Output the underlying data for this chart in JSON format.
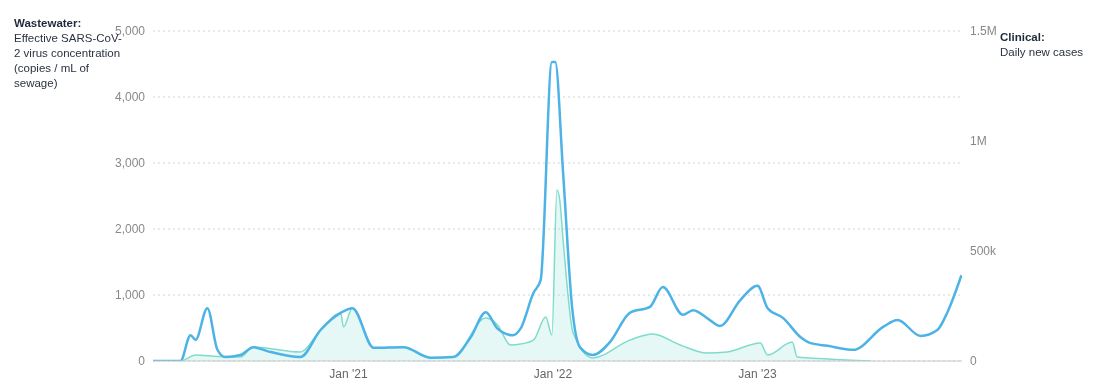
{
  "chart_data": {
    "type": "line",
    "ylabel": "Wastewater: Effective SARS-CoV-2 virus concentration (copies / mL of sewage)",
    "y2label": "Clinical: Daily new cases",
    "series": [
      {
        "color": "#4db3e6",
        "x": [
          "2020-01-18",
          "2020-03-07",
          "2020-03-25",
          "2020-04-03",
          "2020-04-24",
          "2020-05-12",
          "2020-05-26",
          "2020-06-22",
          "2020-07-15",
          "2020-08-09",
          "2020-10-07",
          "2020-11-12",
          "2020-12-18",
          "2021-01-08",
          "2021-02-15",
          "2021-04-09",
          "2021-05-27",
          "2021-07-07",
          "2021-08-07",
          "2021-09-03",
          "2021-09-24",
          "2021-10-21",
          "2021-11-04",
          "2021-11-27",
          "2021-12-10",
          "2021-12-30",
          "2022-01-05",
          "2022-01-19",
          "2022-02-04",
          "2022-02-18",
          "2022-03-13",
          "2022-04-13",
          "2022-05-18",
          "2022-06-23",
          "2022-07-16",
          "2022-08-21",
          "2022-09-08",
          "2022-10-08",
          "2022-10-26",
          "2022-12-01",
          "2023-01-01",
          "2023-01-19",
          "2023-02-16",
          "2023-03-19",
          "2023-04-06",
          "2023-05-06",
          "2023-06-21",
          "2023-08-14",
          "2023-09-08",
          "2023-10-19",
          "2023-11-18",
          "2023-12-06",
          "2023-12-31"
        ],
        "values": [
          0,
          0,
          390,
          320,
          800,
          170,
          60,
          90,
          210,
          150,
          60,
          470,
          730,
          800,
          200,
          210,
          50,
          60,
          360,
          740,
          490,
          390,
          490,
          1030,
          1230,
          4530,
          4530,
          2850,
          820,
          210,
          90,
          290,
          730,
          820,
          1120,
          700,
          770,
          620,
          530,
          920,
          1140,
          800,
          650,
          360,
          270,
          230,
          170,
          520,
          620,
          380,
          470,
          740,
          1300
        ]
      },
      {
        "type": "area",
        "axis": "y2",
        "color": "#7fdccb",
        "x": [
          "2020-01-18",
          "2020-03-07",
          "2020-04-03",
          "2020-05-12",
          "2020-06-22",
          "2020-07-15",
          "2020-10-07",
          "2020-11-12",
          "2020-12-18",
          "2020-12-23",
          "2021-01-08",
          "2021-02-15",
          "2021-04-09",
          "2021-05-27",
          "2021-07-07",
          "2021-09-03",
          "2021-09-24",
          "2021-10-17",
          "2021-11-04",
          "2021-11-27",
          "2021-12-19",
          "2021-12-30",
          "2022-01-08",
          "2022-01-13",
          "2022-01-19",
          "2022-02-06",
          "2022-03-13",
          "2022-05-18",
          "2022-06-28",
          "2022-08-16",
          "2022-10-03",
          "2022-11-08",
          "2023-01-06",
          "2023-01-19",
          "2023-03-04",
          "2023-03-13",
          "2023-05-06",
          "2023-07-22"
        ],
        "values": [
          0,
          0,
          27000,
          20000,
          18000,
          64000,
          41000,
          141000,
          218000,
          155000,
          241000,
          59000,
          64000,
          14000,
          18000,
          195000,
          164000,
          73000,
          77000,
          95000,
          200000,
          118000,
          777000,
          732000,
          550000,
          127000,
          14000,
          95000,
          123000,
          73000,
          36000,
          41000,
          82000,
          27000,
          86000,
          18000,
          9000,
          0
        ]
      }
    ],
    "xlim": [
      "2020-01-18",
      "2024-01-01"
    ],
    "xticks": [
      {
        "value": "2021-01-01",
        "label": "Jan '21"
      },
      {
        "value": "2022-01-01",
        "label": "Jan '22"
      },
      {
        "value": "2023-01-01",
        "label": "Jan '23"
      }
    ],
    "ylim": [
      0,
      5000
    ],
    "yticks": [
      0,
      {
        "value": 1000,
        "label": "1,000"
      },
      {
        "value": 2000,
        "label": "2,000"
      },
      {
        "value": 3000,
        "label": "3,000"
      },
      {
        "value": 4000,
        "label": "4,000"
      },
      {
        "value": 5000,
        "label": "5,000"
      }
    ],
    "y2lim": [
      0,
      1500000
    ],
    "y2ticks": [
      0,
      {
        "value": 500000,
        "label": "500k"
      },
      {
        "value": 1000000,
        "label": "1M"
      },
      {
        "value": 1500000,
        "label": "1.5M"
      }
    ],
    "grid": "y",
    "marker": "none",
    "line_style": "solid"
  }
}
